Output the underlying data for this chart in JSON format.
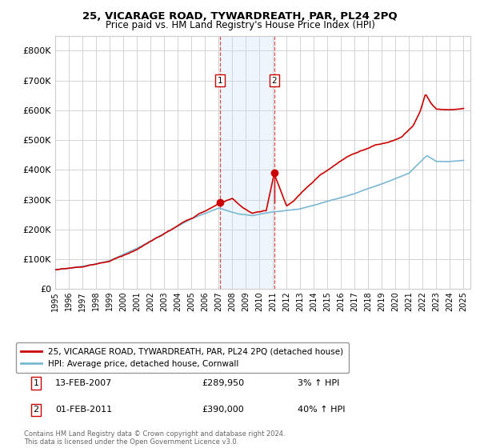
{
  "title": "25, VICARAGE ROAD, TYWARDREATH, PAR, PL24 2PQ",
  "subtitle": "Price paid vs. HM Land Registry's House Price Index (HPI)",
  "legend_line1": "25, VICARAGE ROAD, TYWARDREATH, PAR, PL24 2PQ (detached house)",
  "legend_line2": "HPI: Average price, detached house, Cornwall",
  "transaction1_label": "1",
  "transaction1_date": "13-FEB-2007",
  "transaction1_price": "£289,950",
  "transaction1_hpi": "3% ↑ HPI",
  "transaction2_label": "2",
  "transaction2_date": "01-FEB-2011",
  "transaction2_price": "£390,000",
  "transaction2_hpi": "40% ↑ HPI",
  "footer": "Contains HM Land Registry data © Crown copyright and database right 2024.\nThis data is licensed under the Open Government Licence v3.0.",
  "hpi_color": "#7ab8d4",
  "price_color": "#cc0000",
  "marker_color": "#cc0000",
  "highlight_color": "#ddeeff",
  "vline_color": "#cc0000",
  "grid_color": "#cccccc",
  "background_color": "#ffffff",
  "ylim": [
    0,
    850000
  ],
  "yticks": [
    0,
    100000,
    200000,
    300000,
    400000,
    500000,
    600000,
    700000,
    800000
  ],
  "transaction1_x": 2007.12,
  "transaction1_y": 289950,
  "transaction2_x": 2011.08,
  "transaction2_y": 390000,
  "xlim_left": 1995,
  "xlim_right": 2025.5
}
